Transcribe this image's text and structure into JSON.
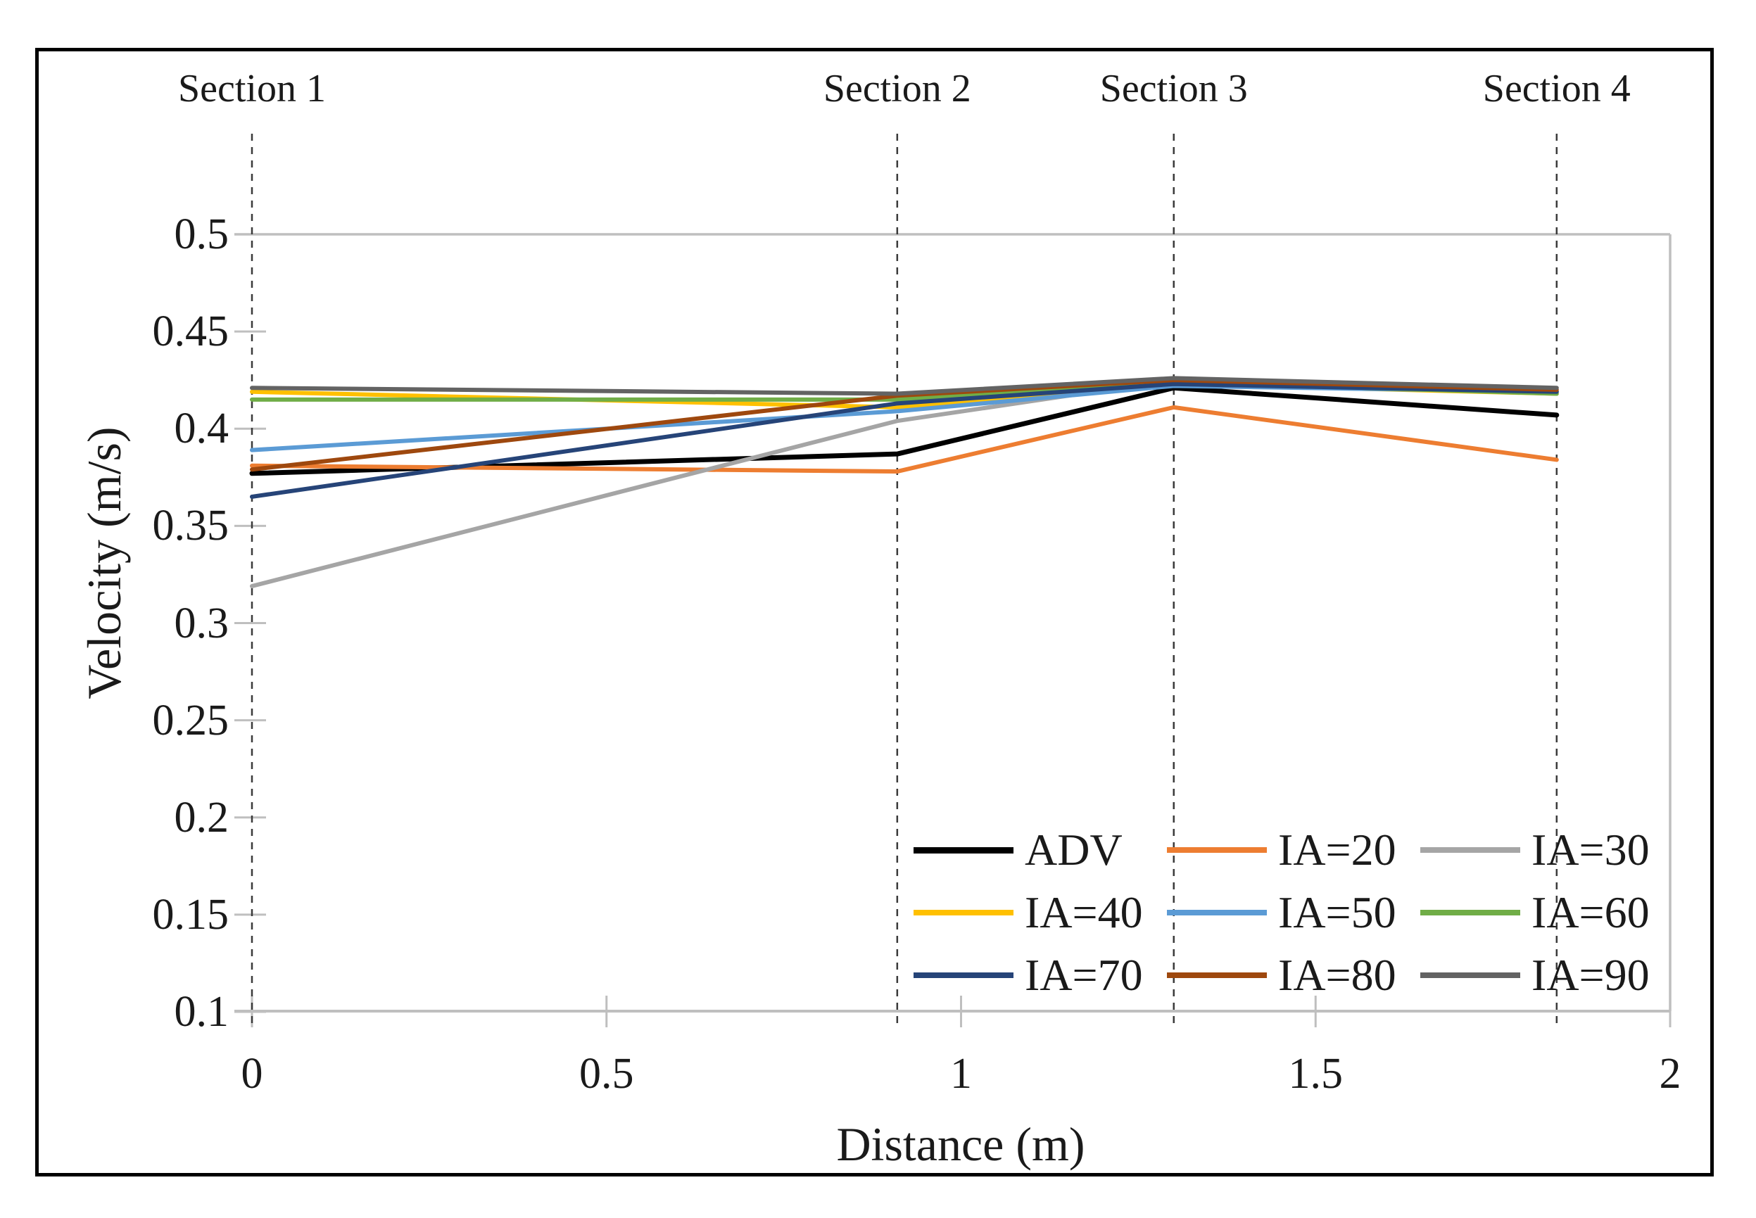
{
  "figure": {
    "background_color": "#ffffff",
    "border_color": "#000000",
    "axis_color": "#bfbfbf",
    "section_line_color": "#3a3a3a"
  },
  "chart_data": {
    "type": "line",
    "title": "",
    "xlabel": "Distance (m)",
    "ylabel": "Velocity (m/s)",
    "xlim": [
      0,
      2
    ],
    "ylim": [
      0.1,
      0.5
    ],
    "grid": {
      "horizontal_gridlines_at": [
        0.5
      ],
      "plot_right_border": true,
      "section_lines_style": "dashed-vertical"
    },
    "x_tick_values": [
      0,
      0.5,
      1,
      1.5,
      2
    ],
    "x_tick_labels": [
      "0",
      "0.5",
      "1",
      "1.5",
      "2"
    ],
    "y_tick_values": [
      0.5,
      0.45,
      0.4,
      0.35,
      0.3,
      0.25,
      0.2,
      0.15,
      0.1
    ],
    "y_tick_labels": [
      "0.5",
      "0.45",
      "0.4",
      "0.35",
      "0.3",
      "0.25",
      "0.2",
      "0.15",
      "0.1"
    ],
    "sections": [
      {
        "label": "Section 1",
        "x": 0
      },
      {
        "label": "Section 2",
        "x": 0.91
      },
      {
        "label": "Section 3",
        "x": 1.3
      },
      {
        "label": "Section 4",
        "x": 1.84
      }
    ],
    "x": [
      0,
      0.91,
      1.3,
      1.84
    ],
    "series": [
      {
        "name": "ADV",
        "color": "#000000",
        "values": [
          0.377,
          0.387,
          0.421,
          0.407
        ]
      },
      {
        "name": "IA=20",
        "color": "#ED7D31",
        "values": [
          0.381,
          0.378,
          0.411,
          0.384
        ]
      },
      {
        "name": "IA=30",
        "color": "#A5A5A5",
        "values": [
          0.319,
          0.404,
          0.425,
          0.419
        ]
      },
      {
        "name": "IA=40",
        "color": "#FFC000",
        "values": [
          0.419,
          0.411,
          0.423,
          0.418
        ]
      },
      {
        "name": "IA=50",
        "color": "#5B9BD5",
        "values": [
          0.389,
          0.409,
          0.422,
          0.419
        ]
      },
      {
        "name": "IA=60",
        "color": "#70AD47",
        "values": [
          0.415,
          0.415,
          0.424,
          0.418
        ]
      },
      {
        "name": "IA=70",
        "color": "#264478",
        "values": [
          0.365,
          0.413,
          0.423,
          0.419
        ]
      },
      {
        "name": "IA=80",
        "color": "#9E480E",
        "values": [
          0.379,
          0.417,
          0.425,
          0.42
        ]
      },
      {
        "name": "IA=90",
        "color": "#636363",
        "values": [
          0.421,
          0.418,
          0.426,
          0.421
        ]
      }
    ],
    "legend": {
      "position": "inside-bottom-right",
      "columns": 3,
      "rows": [
        [
          "ADV",
          "IA=20",
          "IA=30"
        ],
        [
          "IA=40",
          "IA=50",
          "IA=60"
        ],
        [
          "IA=70",
          "IA=80",
          "IA=90"
        ]
      ]
    }
  }
}
